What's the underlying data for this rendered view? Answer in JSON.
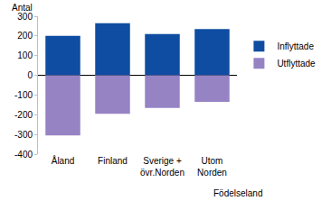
{
  "chart_data": {
    "type": "bar",
    "stacked": true,
    "y_label": "Antal",
    "x_label": "Födelseland",
    "categories": [
      "Åland",
      "Finland",
      "Sverige + övr.Norden",
      "Utom Norden"
    ],
    "series": [
      {
        "name": "Inflyttade",
        "color": "#0e4da1",
        "values": [
          200,
          265,
          210,
          235
        ]
      },
      {
        "name": "Utflyttade",
        "color": "#9683c4",
        "values": [
          -305,
          -195,
          -165,
          -135
        ]
      }
    ],
    "ylim": [
      -400,
      300
    ],
    "yticks": [
      -400,
      -300,
      -200,
      -100,
      0,
      100,
      200,
      300
    ],
    "grid": false,
    "legend": "right"
  }
}
